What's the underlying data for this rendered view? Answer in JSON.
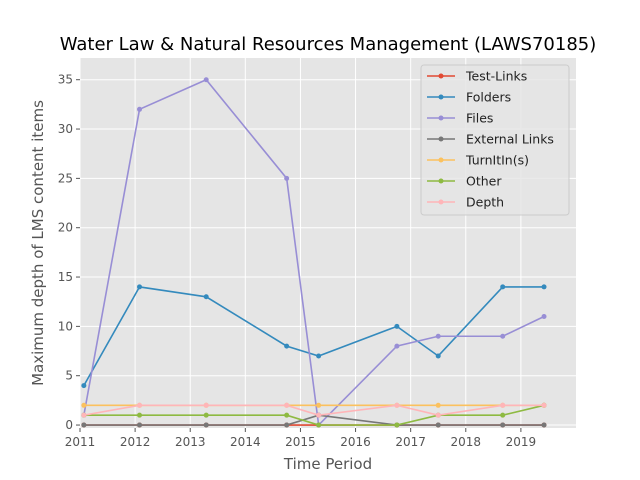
{
  "chart_data": {
    "type": "line",
    "title": "Water Law & Natural Resources Management (LAWS70185)",
    "xlabel": "Time Period",
    "ylabel": "Maximum depth of LMS content items",
    "xlim": [
      2011.0,
      2020.0
    ],
    "ylim": [
      -0.3,
      37.2
    ],
    "xticks": [
      2011,
      2012,
      2013,
      2014,
      2015,
      2016,
      2017,
      2018,
      2019
    ],
    "yticks": [
      0,
      5,
      10,
      15,
      20,
      25,
      30,
      35
    ],
    "grid": true,
    "legend_position": "top-right",
    "background": "#e5e5e5",
    "series": [
      {
        "name": "Test-Links",
        "color": "#e24a33",
        "points": [
          [
            2011.07,
            0
          ],
          [
            2012.08,
            0
          ],
          [
            2013.29,
            0
          ],
          [
            2014.75,
            0
          ],
          [
            2015.33,
            0
          ],
          [
            2016.75,
            0
          ],
          [
            2017.5,
            0
          ],
          [
            2018.67,
            0
          ],
          [
            2019.42,
            0
          ]
        ]
      },
      {
        "name": "Folders",
        "color": "#348abd",
        "points": [
          [
            2011.07,
            4
          ],
          [
            2012.08,
            14
          ],
          [
            2013.29,
            13
          ],
          [
            2014.75,
            8
          ],
          [
            2015.33,
            7
          ],
          [
            2016.75,
            10
          ],
          [
            2017.5,
            7
          ],
          [
            2018.67,
            14
          ],
          [
            2019.42,
            14
          ]
        ]
      },
      {
        "name": "Files",
        "color": "#988ed5",
        "points": [
          [
            2011.07,
            1
          ],
          [
            2012.08,
            32
          ],
          [
            2013.29,
            35
          ],
          [
            2014.75,
            25
          ],
          [
            2015.33,
            0
          ],
          [
            2016.75,
            8
          ],
          [
            2017.5,
            9
          ],
          [
            2018.67,
            9
          ],
          [
            2019.42,
            11
          ]
        ]
      },
      {
        "name": "External Links",
        "color": "#777777",
        "points": [
          [
            2011.07,
            0
          ],
          [
            2012.08,
            0
          ],
          [
            2013.29,
            0
          ],
          [
            2014.75,
            0
          ],
          [
            2015.33,
            1
          ],
          [
            2016.75,
            0
          ],
          [
            2017.5,
            0
          ],
          [
            2018.67,
            0
          ],
          [
            2019.42,
            0
          ]
        ]
      },
      {
        "name": "TurnItIn(s)",
        "color": "#fbc15e",
        "points": [
          [
            2011.07,
            2
          ],
          [
            2012.08,
            2
          ],
          [
            2013.29,
            2
          ],
          [
            2014.75,
            2
          ],
          [
            2015.33,
            2
          ],
          [
            2016.75,
            2
          ],
          [
            2017.5,
            2
          ],
          [
            2018.67,
            2
          ],
          [
            2019.42,
            2
          ]
        ]
      },
      {
        "name": "Other",
        "color": "#8eba42",
        "points": [
          [
            2011.07,
            1
          ],
          [
            2012.08,
            1
          ],
          [
            2013.29,
            1
          ],
          [
            2014.75,
            1
          ],
          [
            2015.33,
            0
          ],
          [
            2016.75,
            0
          ],
          [
            2017.5,
            1
          ],
          [
            2018.67,
            1
          ],
          [
            2019.42,
            2
          ]
        ]
      },
      {
        "name": "Depth",
        "color": "#ffb5b8",
        "points": [
          [
            2011.07,
            1
          ],
          [
            2012.08,
            2
          ],
          [
            2013.29,
            2
          ],
          [
            2014.75,
            2
          ],
          [
            2015.33,
            1
          ],
          [
            2016.75,
            2
          ],
          [
            2017.5,
            1
          ],
          [
            2018.67,
            2
          ],
          [
            2019.42,
            2
          ]
        ]
      }
    ]
  }
}
